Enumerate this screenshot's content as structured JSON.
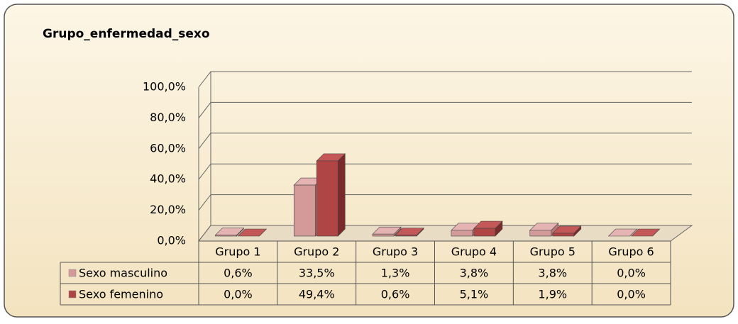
{
  "chart_data": {
    "type": "bar3d",
    "title": "Grupo_enfermedad_sexo",
    "categories": [
      "Grupo 1",
      "Grupo 2",
      "Grupo 3",
      "Grupo 4",
      "Grupo 5",
      "Grupo 6"
    ],
    "series": [
      {
        "name": "Sexo masculino",
        "color": "#d49a9a",
        "values": [
          0.6,
          33.5,
          1.3,
          3.8,
          3.8,
          0.0
        ],
        "value_labels": [
          "0,6%",
          "33,5%",
          "1,3%",
          "3,8%",
          "3,8%",
          "0,0%"
        ]
      },
      {
        "name": "Sexo femenino",
        "color": "#b04545",
        "values": [
          0.0,
          49.4,
          0.6,
          5.1,
          1.9,
          0.0
        ],
        "value_labels": [
          "0,0%",
          "49,4%",
          "0,6%",
          "5,1%",
          "1,9%",
          "0,0%"
        ]
      }
    ],
    "ylim": [
      0,
      100
    ],
    "yticks": [
      {
        "value": 0,
        "label": "0,0%"
      },
      {
        "value": 20,
        "label": "20,0%"
      },
      {
        "value": 40,
        "label": "40,0%"
      },
      {
        "value": 60,
        "label": "60,0%"
      },
      {
        "value": 80,
        "label": "80,0%"
      },
      {
        "value": 100,
        "label": "100,0%"
      }
    ],
    "grid": true
  }
}
